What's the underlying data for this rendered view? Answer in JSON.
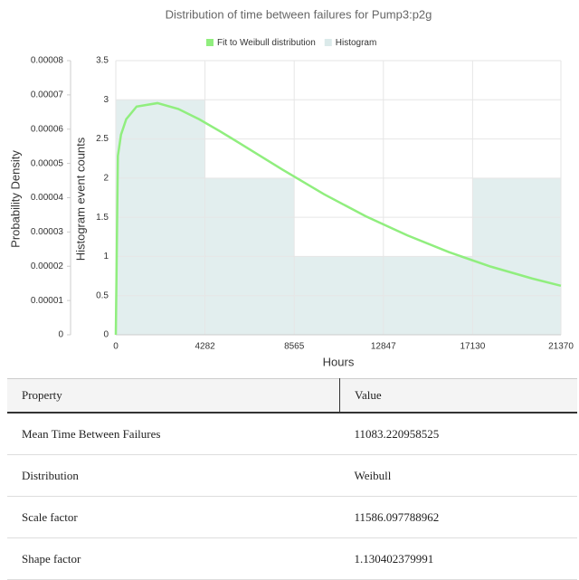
{
  "chart_data": {
    "type": "histogram",
    "title": "Distribution of time between failures for Pump3:p2g",
    "x_label": "Hours",
    "y_label": "Probability Density",
    "y2_label": "Histogram event counts",
    "xlim": [
      0,
      21370
    ],
    "xticks": [
      0,
      4282,
      8565,
      12847,
      17130,
      21370
    ],
    "ylim": [
      0,
      8e-05
    ],
    "yticks": [
      0,
      1e-05,
      2e-05,
      3e-05,
      4e-05,
      5e-05,
      6e-05,
      7e-05,
      8e-05
    ],
    "y2lim": [
      0,
      3.5
    ],
    "y2ticks": [
      0,
      0.5,
      1,
      1.5,
      2,
      2.5,
      3,
      3.5
    ],
    "grid": true,
    "legend": "top",
    "series": [
      {
        "name": "Fit to Weibull distribution",
        "type": "line",
        "color": "#90ee7e",
        "x": [
          0,
          100,
          250,
          500,
          1000,
          2000,
          3000,
          4000,
          5000,
          6000,
          8000,
          10000,
          12000,
          14000,
          16000,
          18000,
          20000,
          21370
        ],
        "values": [
          0,
          5.22e-05,
          5.84e-05,
          6.29e-05,
          6.66e-05,
          6.76e-05,
          6.59e-05,
          6.29e-05,
          5.94e-05,
          5.57e-05,
          4.82e-05,
          4.1e-05,
          3.46e-05,
          2.9e-05,
          2.41e-05,
          1.99e-05,
          1.64e-05,
          1.43e-05
        ]
      },
      {
        "name": "Histogram",
        "type": "bar",
        "axis": "y2",
        "color": "#dbeaea",
        "bins": [
          0,
          4282,
          8565,
          12847,
          17130,
          21370
        ],
        "values": [
          3,
          2,
          1,
          1,
          2
        ]
      }
    ]
  },
  "table": {
    "header": [
      "Property",
      "Value"
    ],
    "rows": [
      [
        "Mean Time Between Failures",
        "11083.220958525"
      ],
      [
        "Distribution",
        "Weibull"
      ],
      [
        "Scale factor",
        "11586.097788962"
      ],
      [
        "Shape factor",
        "1.130402379991"
      ]
    ]
  }
}
